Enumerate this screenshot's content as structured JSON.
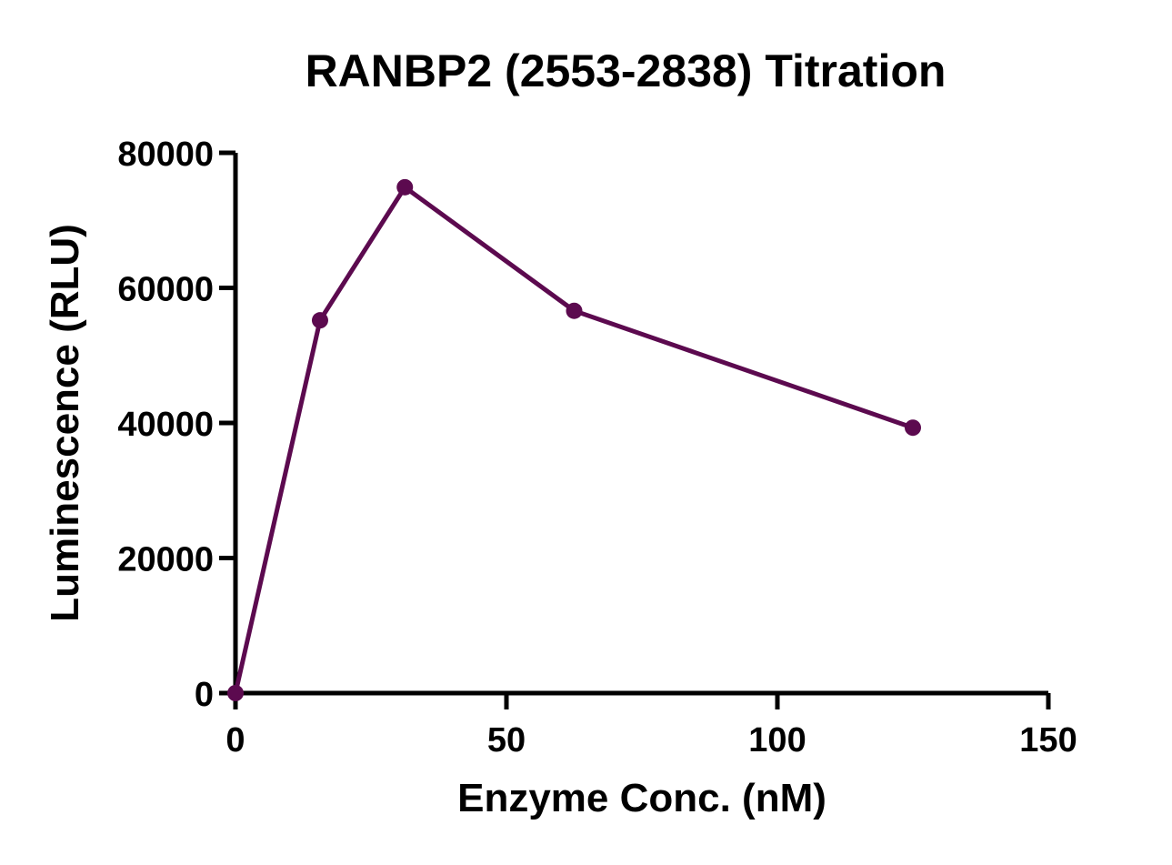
{
  "chart_data": {
    "type": "line",
    "title": "RANBP2 (2553-2838) Titration",
    "xlabel": "Enzyme Conc. (nM)",
    "ylabel": "Luminescence (RLU)",
    "xlim": [
      0,
      150
    ],
    "ylim": [
      0,
      80000
    ],
    "x_ticks": [
      0,
      50,
      100,
      150
    ],
    "y_ticks": [
      0,
      20000,
      40000,
      60000,
      80000
    ],
    "x_tick_labels": [
      "0",
      "50",
      "100",
      "150"
    ],
    "y_tick_labels": [
      "0",
      "20000",
      "40000",
      "60000",
      "80000"
    ],
    "grid": false,
    "legend": "none",
    "series": [
      {
        "color": "#5c0a4f",
        "x": [
          0,
          15.6,
          31.25,
          62.5,
          125
        ],
        "y": [
          0,
          55200,
          74900,
          56600,
          39300
        ]
      }
    ]
  }
}
